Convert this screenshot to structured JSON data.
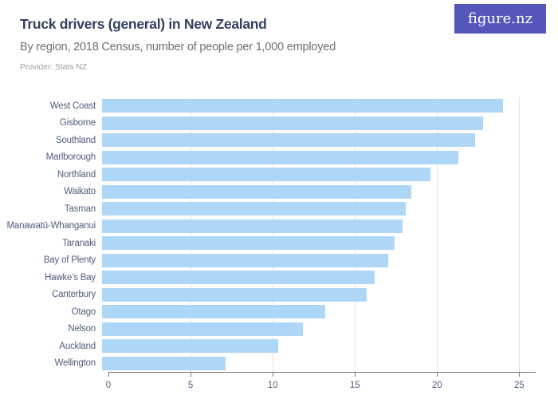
{
  "header": {
    "title": "Truck drivers (general) in New Zealand",
    "subtitle": "By region, 2018 Census, number of people per 1,000 employed",
    "provider": "Provider: Stats NZ",
    "logo_text": "figure.nz"
  },
  "colors": {
    "bar": "#aed7f7",
    "logo_bg": "#5457b9",
    "title": "#33415e",
    "subtitle": "#6b7077",
    "provider": "#9d9d9d",
    "axis_label": "#4f5d7d",
    "gridline": "#e4e4e4",
    "axis_line": "#7b7b7b"
  },
  "chart_data": {
    "type": "bar",
    "orientation": "horizontal",
    "title": "Truck drivers (general) in New Zealand",
    "subtitle": "By region, 2018 Census, number of people per 1,000 employed",
    "xlabel": "",
    "ylabel": "",
    "categories": [
      "West Coast",
      "Gisborne",
      "Southland",
      "Marlborough",
      "Northland",
      "Waikato",
      "Tasman",
      "Manawatū-Whanganui",
      "Taranaki",
      "Bay of Plenty",
      "Hawke's Bay",
      "Canterbury",
      "Otago",
      "Nelson",
      "Auckland",
      "Wellington"
    ],
    "values": [
      24.4,
      23.2,
      22.7,
      21.7,
      20.0,
      18.8,
      18.5,
      18.3,
      17.8,
      17.4,
      16.6,
      16.1,
      13.6,
      12.2,
      10.7,
      7.5
    ],
    "xlim": [
      0,
      26
    ],
    "xticks": [
      0,
      5,
      10,
      15,
      20,
      25
    ],
    "grid": true,
    "legend": false
  }
}
